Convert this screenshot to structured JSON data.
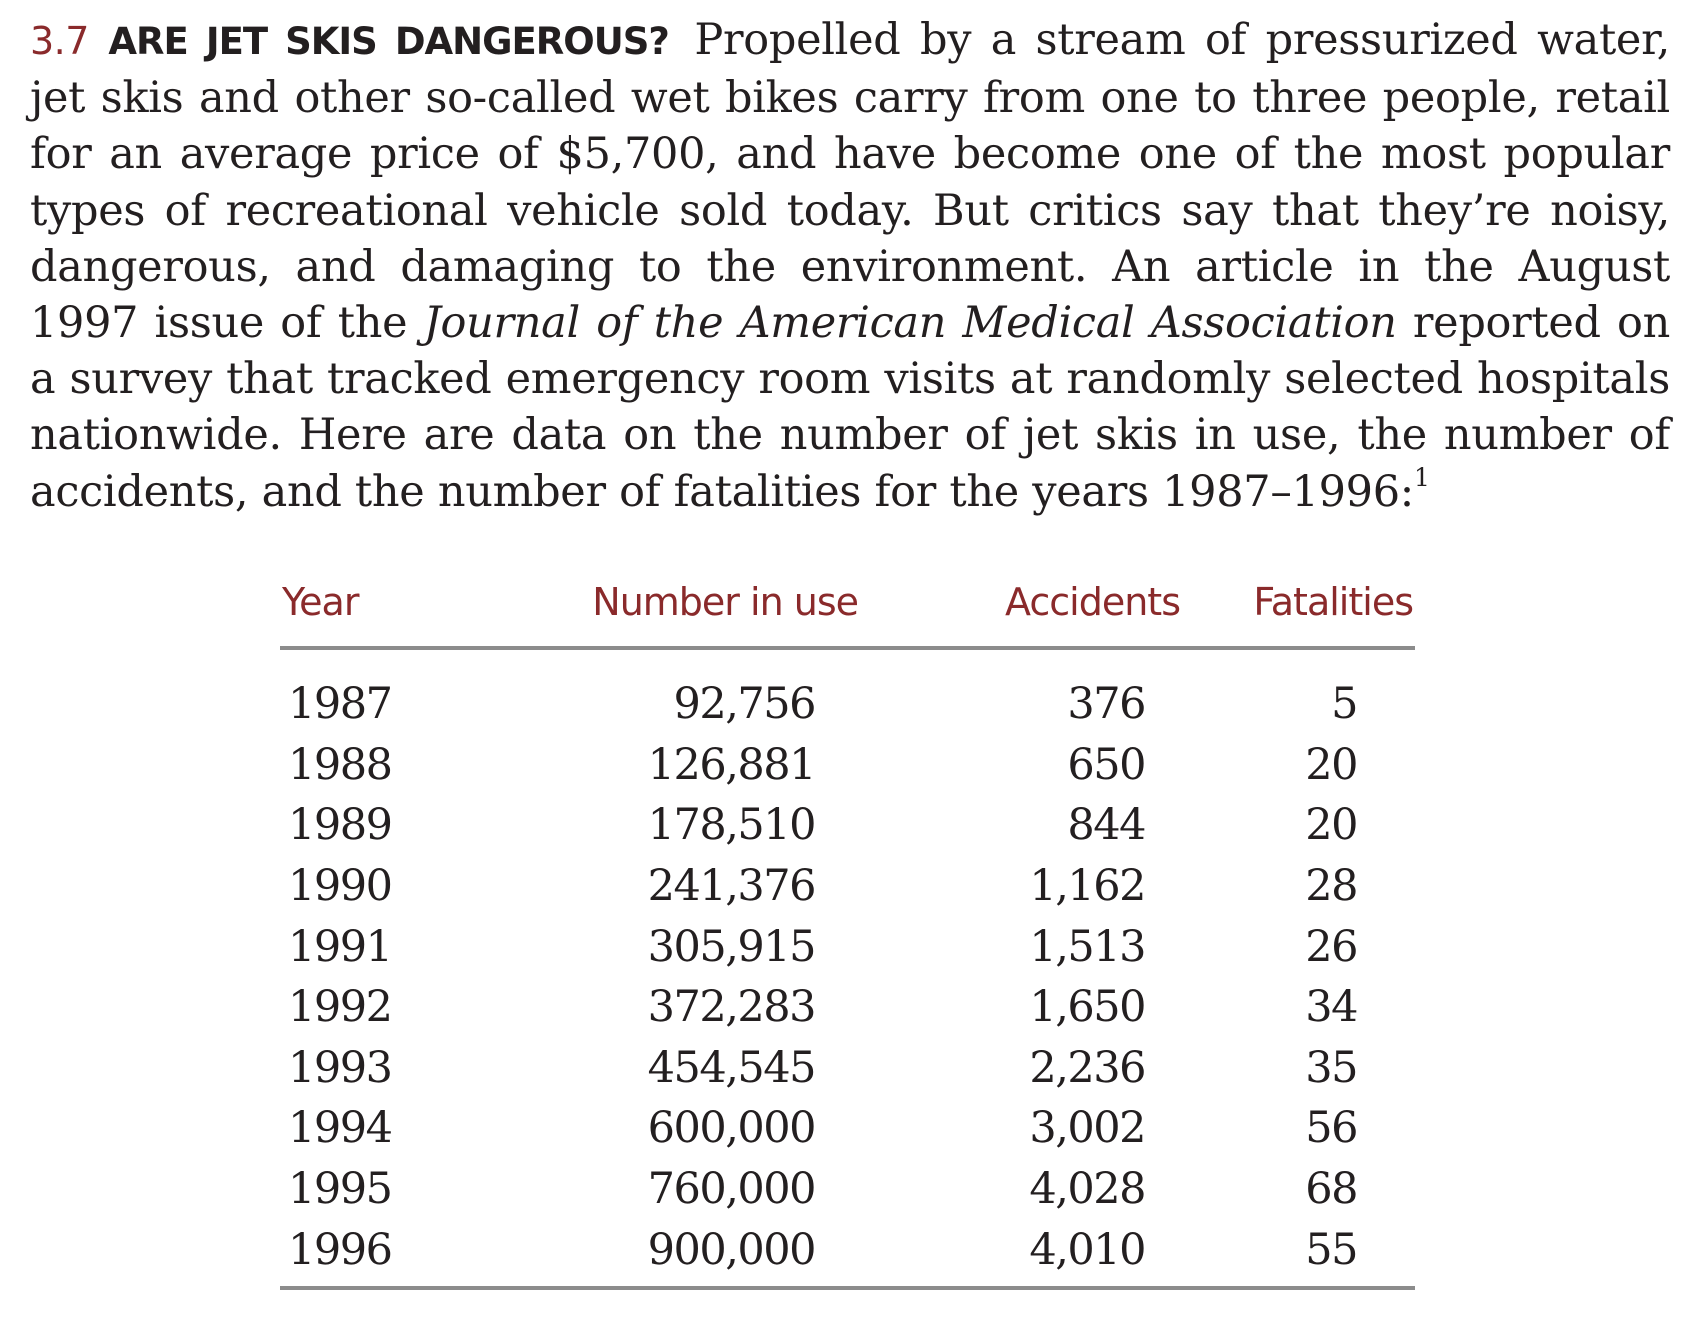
{
  "exercise": {
    "number": "3.7",
    "title": "ARE JET SKIS DANGEROUS?",
    "text_1": "Propelled by a stream of pressurized water, jet skis and other so-called wet bikes carry from one to three people, retail for an average price of $5,700, and have become one of the most popular types of recreational vehicle sold today. But critics say that they’re noisy, dangerous, and damaging to the environment. An article in the August 1997 issue of the ",
    "journal": "Journal of the American Medical Association",
    "text_2": " reported on a survey that tracked emergency room visits at randomly selected hospitals nationwide. Here are data on the number of jet skis in use, the number of accidents, and the number of fatalities for the years 1987–1996:",
    "footnote_ref": "1"
  },
  "table": {
    "headers": {
      "year": "Year",
      "number_in_use": "Number in use",
      "accidents": "Accidents",
      "fatalities": "Fatalities"
    },
    "rows": [
      {
        "year": "1987",
        "number_in_use": "92,756",
        "accidents": "376",
        "fatalities": "5"
      },
      {
        "year": "1988",
        "number_in_use": "126,881",
        "accidents": "650",
        "fatalities": "20"
      },
      {
        "year": "1989",
        "number_in_use": "178,510",
        "accidents": "844",
        "fatalities": "20"
      },
      {
        "year": "1990",
        "number_in_use": "241,376",
        "accidents": "1,162",
        "fatalities": "28"
      },
      {
        "year": "1991",
        "number_in_use": "305,915",
        "accidents": "1,513",
        "fatalities": "26"
      },
      {
        "year": "1992",
        "number_in_use": "372,283",
        "accidents": "1,650",
        "fatalities": "34"
      },
      {
        "year": "1993",
        "number_in_use": "454,545",
        "accidents": "2,236",
        "fatalities": "35"
      },
      {
        "year": "1994",
        "number_in_use": "600,000",
        "accidents": "3,002",
        "fatalities": "56"
      },
      {
        "year": "1995",
        "number_in_use": "760,000",
        "accidents": "4,028",
        "fatalities": "68"
      },
      {
        "year": "1996",
        "number_in_use": "900,000",
        "accidents": "4,010",
        "fatalities": "55"
      }
    ]
  },
  "colors": {
    "accent": "#8a2a2b",
    "text": "#231f20",
    "rule": "#8c8c8c"
  }
}
